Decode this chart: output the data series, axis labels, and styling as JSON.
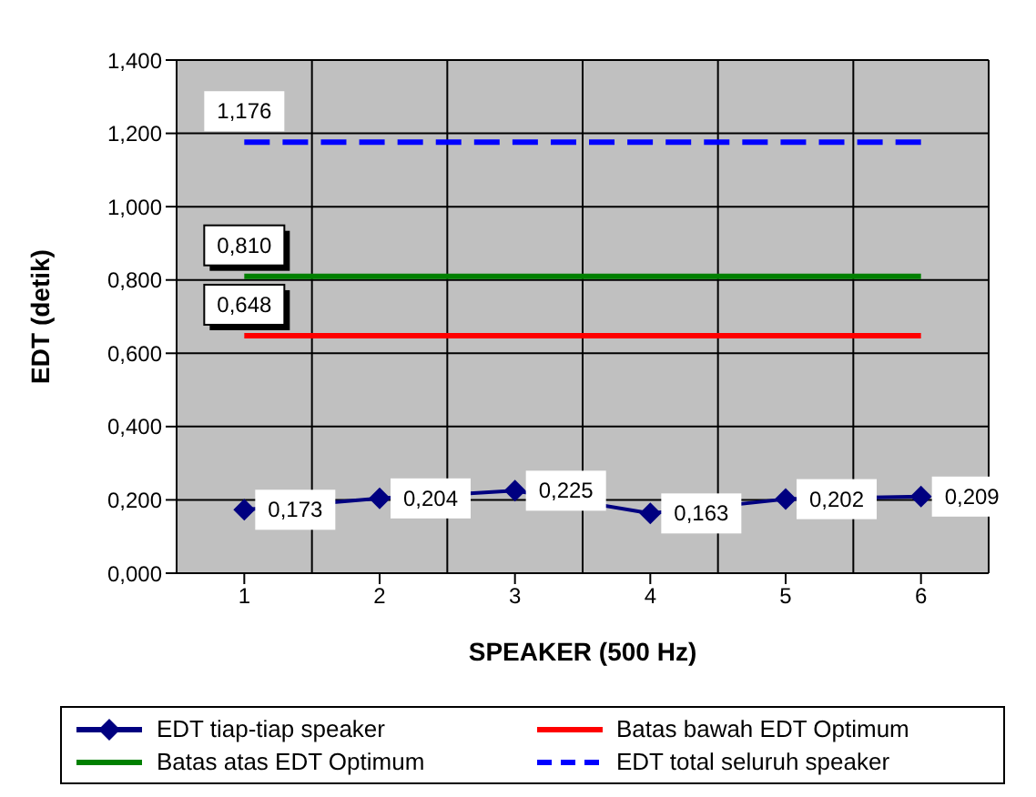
{
  "chart_data": {
    "type": "line",
    "xlabel": "SPEAKER (500 Hz)",
    "ylabel": "EDT (detik)",
    "categories": [
      "1",
      "2",
      "3",
      "4",
      "5",
      "6"
    ],
    "ylim": [
      0,
      1.4
    ],
    "yticks": [
      {
        "value": 0,
        "label": "0,000"
      },
      {
        "value": 0.2,
        "label": "0,200"
      },
      {
        "value": 0.4,
        "label": "0,400"
      },
      {
        "value": 0.6,
        "label": "0,600"
      },
      {
        "value": 0.8,
        "label": "0,800"
      },
      {
        "value": 1,
        "label": "1,000"
      },
      {
        "value": 1.2,
        "label": "1,200"
      },
      {
        "value": 1.4,
        "label": "1,400"
      }
    ],
    "grid": true,
    "legend": "bottom",
    "series": [
      {
        "name": "EDT tiap-tiap speaker",
        "color": "#000080",
        "marker": "diamond",
        "line_style": "solid",
        "values": [
          0.173,
          0.204,
          0.225,
          0.163,
          0.202,
          0.209
        ],
        "value_labels": [
          "0,173",
          "0,204",
          "0,225",
          "0,163",
          "0,202",
          "0,209"
        ]
      },
      {
        "name": "Batas bawah EDT Optimum",
        "color": "#ff0000",
        "marker": "none",
        "line_style": "solid",
        "values": [
          0.648,
          0.648,
          0.648,
          0.648,
          0.648,
          0.648
        ],
        "value_labels": [
          "0,648",
          null,
          null,
          null,
          null,
          null
        ]
      },
      {
        "name": "Batas atas EDT Optimum",
        "color": "#008000",
        "marker": "none",
        "line_style": "solid",
        "values": [
          0.81,
          0.81,
          0.81,
          0.81,
          0.81,
          0.81
        ],
        "value_labels": [
          "0,810",
          null,
          null,
          null,
          null,
          null
        ]
      },
      {
        "name": "EDT total seluruh speaker",
        "color": "#0000ff",
        "marker": "none",
        "line_style": "dashed",
        "values": [
          1.176,
          1.176,
          1.176,
          1.176,
          1.176,
          1.176
        ],
        "value_labels": [
          "1,176",
          null,
          null,
          null,
          null,
          null
        ]
      }
    ]
  }
}
